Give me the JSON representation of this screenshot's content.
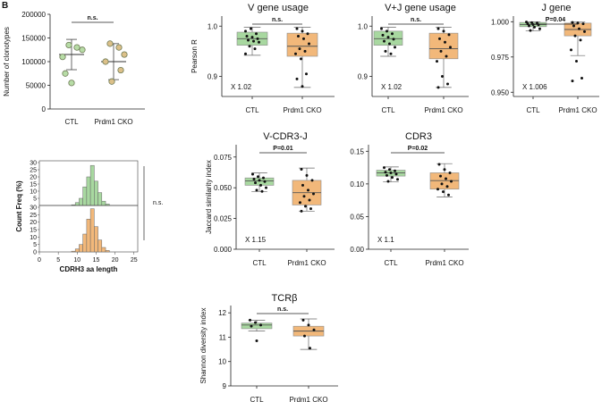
{
  "figure": {
    "panel_label": "B",
    "colors": {
      "ctl": "#a8d8a0",
      "cko": "#f2b87a",
      "ctl_dot": "#b7dca6",
      "cko_dot": "#dcc089",
      "dot_edge": "#6d7a55",
      "whisker": "#666666"
    }
  },
  "chart_data": [
    {
      "id": "clonotypes",
      "type": "scatter",
      "title": "",
      "ylabel": "Number of clonotypes",
      "ylim": [
        0,
        200000
      ],
      "yticks": [
        0,
        50000,
        100000,
        150000,
        200000
      ],
      "ytick_labels": [
        "0",
        "50000",
        "100000",
        "150000",
        "200000"
      ],
      "categories": [
        "CTL",
        "Prdm1 CKO"
      ],
      "series": [
        {
          "name": "CTL",
          "values": [
            135000,
            130000,
            125000,
            110000,
            75000,
            55000
          ],
          "mean": 115000,
          "sd": 32000
        },
        {
          "name": "Prdm1 CKO",
          "values": [
            138000,
            130000,
            115000,
            100000,
            82000,
            58000
          ],
          "mean": 100000,
          "sd": 38000
        }
      ],
      "significance": "n.s."
    },
    {
      "id": "v_gene",
      "type": "box",
      "title": "V gene usage",
      "ylabel": "Pearson R",
      "ylim": [
        0.86,
        1.02
      ],
      "yticks": [
        0.9,
        1.0
      ],
      "ytick_labels": [
        "0.9",
        "1.0"
      ],
      "categories": [
        "CTL",
        "Prdm1 CKO"
      ],
      "boxes": [
        {
          "q1": 0.962,
          "median": 0.975,
          "q3": 0.988,
          "whisker_low": 0.942,
          "whisker_high": 0.998,
          "points": [
            0.99,
            0.995,
            0.985,
            0.98,
            0.978,
            0.975,
            0.972,
            0.97,
            0.968,
            0.96,
            0.955,
            0.945
          ]
        },
        {
          "q1": 0.94,
          "median": 0.96,
          "q3": 0.986,
          "whisker_low": 0.878,
          "whisker_high": 0.998,
          "points": [
            0.995,
            0.99,
            0.985,
            0.98,
            0.975,
            0.965,
            0.955,
            0.95,
            0.945,
            0.935,
            0.905,
            0.895,
            0.88
          ]
        }
      ],
      "significance": "n.s.",
      "annotation": "X 1.02"
    },
    {
      "id": "vj_gene",
      "type": "box",
      "title": "V+J gene usage",
      "ylabel": "",
      "ylim": [
        0.86,
        1.02
      ],
      "yticks": [
        0.9,
        1.0
      ],
      "ytick_labels": [
        "0.9",
        "1.0"
      ],
      "categories": [
        "CTL",
        "Prdm1 CKO"
      ],
      "boxes": [
        {
          "q1": 0.962,
          "median": 0.975,
          "q3": 0.99,
          "whisker_low": 0.94,
          "whisker_high": 0.998,
          "points": [
            0.995,
            0.99,
            0.985,
            0.982,
            0.978,
            0.974,
            0.97,
            0.965,
            0.958,
            0.95,
            0.945
          ]
        },
        {
          "q1": 0.935,
          "median": 0.955,
          "q3": 0.986,
          "whisker_low": 0.878,
          "whisker_high": 0.998,
          "points": [
            0.995,
            0.99,
            0.983,
            0.975,
            0.968,
            0.958,
            0.95,
            0.94,
            0.93,
            0.9,
            0.885,
            0.878
          ]
        }
      ],
      "significance": "n.s.",
      "annotation": "X 1.02"
    },
    {
      "id": "j_gene",
      "type": "box",
      "title": "J gene",
      "ylabel": "",
      "ylim": [
        0.947,
        1.004
      ],
      "yticks": [
        0.95,
        0.975,
        1.0
      ],
      "ytick_labels": [
        "0.950",
        "0.975",
        "1.000"
      ],
      "categories": [
        "CTL",
        "Prdm1 CKO"
      ],
      "boxes": [
        {
          "q1": 0.9965,
          "median": 0.998,
          "q3": 0.9995,
          "whisker_low": 0.9935,
          "whisker_high": 1.0,
          "points": [
            0.9998,
            0.9993,
            0.999,
            0.9985,
            0.998,
            0.9978,
            0.997,
            0.9962,
            0.995,
            0.9938
          ]
        },
        {
          "q1": 0.99,
          "median": 0.9945,
          "q3": 0.999,
          "whisker_low": 0.976,
          "whisker_high": 1.0,
          "points": [
            0.9995,
            0.999,
            0.9985,
            0.997,
            0.995,
            0.993,
            0.99,
            0.987,
            0.98,
            0.972,
            0.96,
            0.958
          ]
        }
      ],
      "significance": "P=0.04",
      "annotation": "X 1.006"
    },
    {
      "id": "cdrh3",
      "type": "bar",
      "title": "",
      "ylabel": "Count Freq (%)",
      "xlabel": "CDRH3 aa length",
      "xlim": [
        0,
        26
      ],
      "ylim": [
        0,
        30
      ],
      "xticks": [
        0,
        5,
        10,
        15,
        20,
        25
      ],
      "xtick_labels": [
        "0",
        "5",
        "10",
        "15",
        "20",
        "25"
      ],
      "yticks": [
        0,
        5,
        10,
        15,
        20,
        25,
        30
      ],
      "ytick_labels": [
        "0",
        "5",
        "10",
        "15",
        "20",
        "25",
        "30"
      ],
      "x": [
        9,
        10,
        11,
        12,
        13,
        14,
        15,
        16,
        17,
        18
      ],
      "series": [
        {
          "name": "CTL",
          "values": [
            0.5,
            2,
            5,
            13,
            20,
            28,
            17,
            9,
            3,
            1
          ]
        },
        {
          "name": "Prdm1 CKO",
          "values": [
            0.5,
            2,
            5,
            12,
            22,
            29,
            17,
            8,
            3,
            1
          ]
        }
      ],
      "significance": "n.s."
    },
    {
      "id": "vcdr3j",
      "type": "box",
      "title": "V-CDR3-J",
      "ylabel": "Jaccard similarity index",
      "ylim": [
        0,
        0.085
      ],
      "yticks": [
        0,
        0.025,
        0.05,
        0.075
      ],
      "ytick_labels": [
        "0.000",
        "0.025",
        "0.050",
        "0.075"
      ],
      "categories": [
        "CTL",
        "Prdm1 CKO"
      ],
      "boxes": [
        {
          "q1": 0.052,
          "median": 0.0555,
          "q3": 0.058,
          "whisker_low": 0.047,
          "whisker_high": 0.062,
          "points": [
            0.061,
            0.059,
            0.058,
            0.057,
            0.056,
            0.055,
            0.054,
            0.052,
            0.05,
            0.048,
            0.047
          ]
        },
        {
          "q1": 0.036,
          "median": 0.046,
          "q3": 0.056,
          "whisker_low": 0.031,
          "whisker_high": 0.066,
          "points": [
            0.065,
            0.06,
            0.056,
            0.052,
            0.048,
            0.045,
            0.043,
            0.04,
            0.038,
            0.035,
            0.033,
            0.031
          ]
        }
      ],
      "significance": "P=0.01",
      "annotation": "X 1.15"
    },
    {
      "id": "cdr3",
      "type": "box",
      "title": "CDR3",
      "ylabel": "",
      "ylim": [
        0,
        0.16
      ],
      "yticks": [
        0,
        0.05,
        0.1,
        0.15
      ],
      "ytick_labels": [
        "0.00",
        "0.05",
        "0.10",
        "0.15"
      ],
      "categories": [
        "CTL",
        "Prdm1 CKO"
      ],
      "boxes": [
        {
          "q1": 0.112,
          "median": 0.117,
          "q3": 0.121,
          "whisker_low": 0.103,
          "whisker_high": 0.126,
          "points": [
            0.125,
            0.122,
            0.12,
            0.118,
            0.117,
            0.115,
            0.113,
            0.11,
            0.107,
            0.104
          ]
        },
        {
          "q1": 0.092,
          "median": 0.105,
          "q3": 0.117,
          "whisker_low": 0.08,
          "whisker_high": 0.131,
          "points": [
            0.13,
            0.122,
            0.117,
            0.112,
            0.108,
            0.104,
            0.1,
            0.096,
            0.092,
            0.088,
            0.083
          ]
        }
      ],
      "significance": "P=0.02",
      "annotation": "X 1.1"
    },
    {
      "id": "tcrb",
      "type": "box",
      "title": "TCRβ",
      "ylabel": "Shannon diversity index",
      "ylim": [
        9,
        12.3
      ],
      "yticks": [
        9,
        10,
        11,
        12
      ],
      "ytick_labels": [
        "9",
        "10",
        "11",
        "12"
      ],
      "categories": [
        "CTL",
        "Prdm1 CKO"
      ],
      "boxes": [
        {
          "q1": 11.35,
          "median": 11.5,
          "q3": 11.58,
          "whisker_low": 11.25,
          "whisker_high": 11.7,
          "points": [
            11.7,
            11.6,
            11.5,
            11.45,
            10.85
          ]
        },
        {
          "q1": 11.05,
          "median": 11.25,
          "q3": 11.45,
          "whisker_low": 10.5,
          "whisker_high": 11.75,
          "points": [
            11.7,
            11.5,
            11.3,
            11.05,
            10.55
          ]
        }
      ],
      "significance": "n.s.",
      "annotation": ""
    }
  ]
}
